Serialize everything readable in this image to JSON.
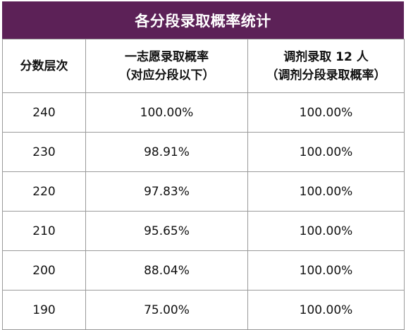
{
  "title": "各分段录取概率统计",
  "headers": {
    "col1": "分数层次",
    "col2_line1": "一志愿录取概率",
    "col2_line2": "（对应分段以下）",
    "col3_line1": "调剂录取 12 人",
    "col3_line2": "（调剂分段录取概率）"
  },
  "rows": [
    {
      "score": "240",
      "first_choice": "100.00%",
      "adjusted": "100.00%"
    },
    {
      "score": "230",
      "first_choice": "98.91%",
      "adjusted": "100.00%"
    },
    {
      "score": "220",
      "first_choice": "97.83%",
      "adjusted": "100.00%"
    },
    {
      "score": "210",
      "first_choice": "95.65%",
      "adjusted": "100.00%"
    },
    {
      "score": "200",
      "first_choice": "88.04%",
      "adjusted": "100.00%"
    },
    {
      "score": "190",
      "first_choice": "75.00%",
      "adjusted": "100.00%"
    }
  ],
  "colors": {
    "title_bg": "#5c2157",
    "title_text": "#ffffff",
    "border": "#9a9a9a"
  }
}
